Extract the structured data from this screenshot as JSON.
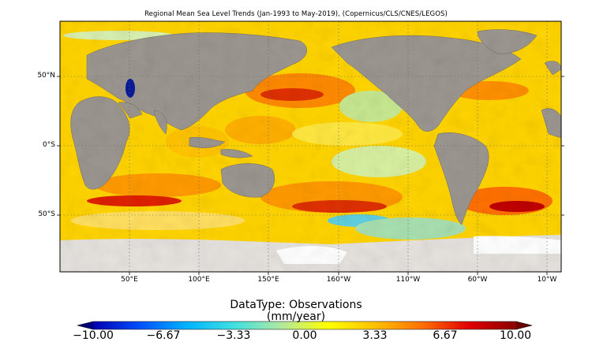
{
  "title": "Regional Mean Sea Level Trends (Jan-1993 to May-2019), (Copernicus/CLS/CNES/LEGOS)",
  "map": {
    "lat_labels": [
      "50°N",
      "0°S",
      "50°S"
    ],
    "lon_labels": [
      "50°E",
      "100°E",
      "150°E",
      "160°W",
      "110°W",
      "60°W",
      "10°W"
    ],
    "land_color": "#9c9690",
    "ice_color": "#ffffff",
    "grid": true
  },
  "colorbar": {
    "title_line1": "DataType: Observations",
    "title_line2": "(mm/year)",
    "min": -10.0,
    "max": 10.0,
    "tick_labels": [
      "−10.00",
      "−6.67",
      "−3.33",
      "0.00",
      "3.33",
      "6.67",
      "10.00"
    ],
    "colors": [
      "#0000b0",
      "#0050ff",
      "#00b4ff",
      "#40e0e0",
      "#b0e8a0",
      "#ffff00",
      "#ffc000",
      "#ff7000",
      "#e00000",
      "#8b0000"
    ]
  }
}
